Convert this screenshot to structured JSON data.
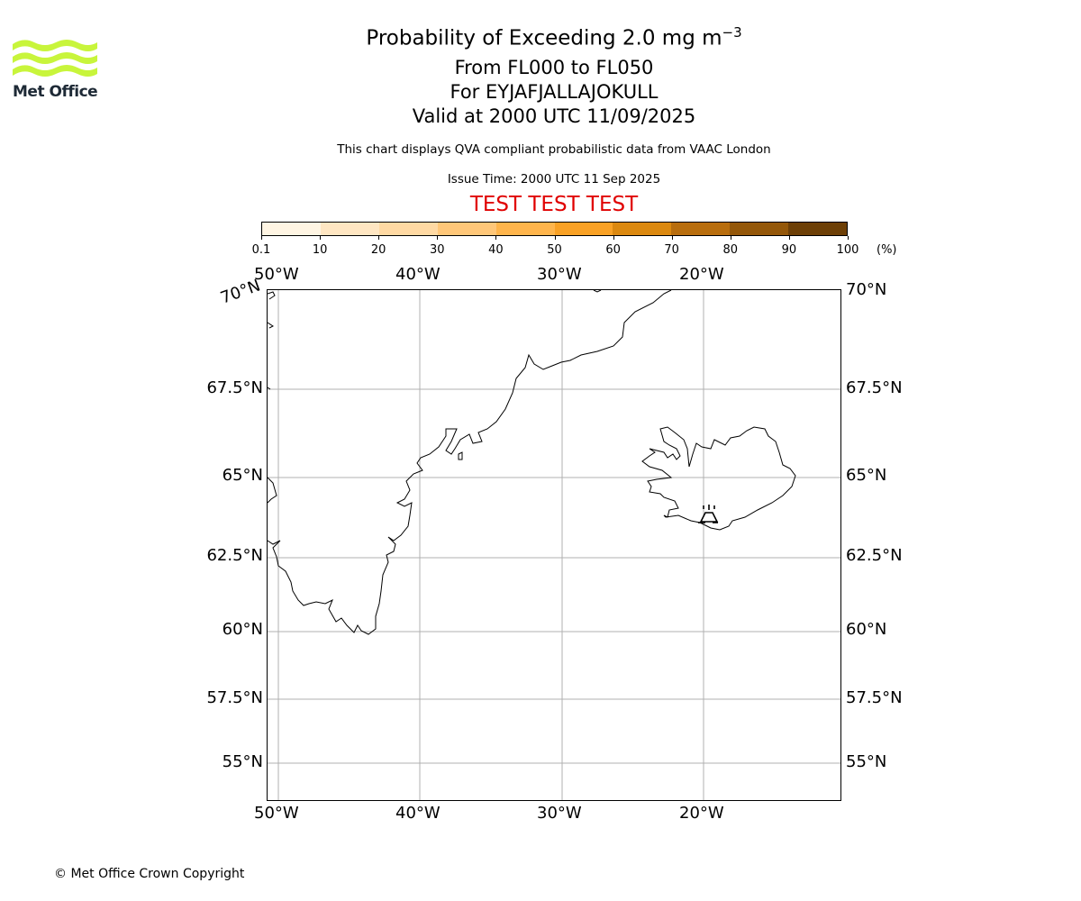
{
  "logo": {
    "text": "Met Office",
    "accent_color": "#c8f53b"
  },
  "header": {
    "title_main": "Probability of Exceeding 2.0 mg m",
    "title_sup": "−3",
    "levels": "From FL000 to FL050",
    "volcano": "For EYJAFJALLAJOKULL",
    "valid": "Valid at 2000 UTC 11/09/2025",
    "note": "This chart displays QVA compliant probabilistic data from VAAC London",
    "issue": "Issue Time: 2000 UTC 11 Sep 2025",
    "test_banner": "TEST TEST TEST"
  },
  "colorbar": {
    "ticks": [
      "0.1",
      "10",
      "20",
      "30",
      "40",
      "50",
      "60",
      "70",
      "80",
      "90",
      "100"
    ],
    "unit": "(%)",
    "colors": [
      "#fff5e3",
      "#ffe6c2",
      "#ffd9a3",
      "#ffc779",
      "#ffb54c",
      "#f9a125",
      "#db880f",
      "#b86d0d",
      "#945709",
      "#6d3f06"
    ]
  },
  "map": {
    "lon_labels": [
      "50°W",
      "40°W",
      "30°W",
      "20°W"
    ],
    "lat_labels_left": [
      "67.5°N",
      "65°N",
      "62.5°N",
      "60°N",
      "57.5°N",
      "55°N"
    ],
    "lat_labels_right": [
      "70°N",
      "67.5°N",
      "65°N",
      "62.5°N",
      "60°N",
      "57.5°N",
      "55°N"
    ],
    "lat_label_corner": "70°N",
    "grid_color": "#b0b0b0",
    "volcano_icon": "volcano-icon"
  },
  "footer": {
    "copyright": "© Met Office Crown Copyright"
  }
}
